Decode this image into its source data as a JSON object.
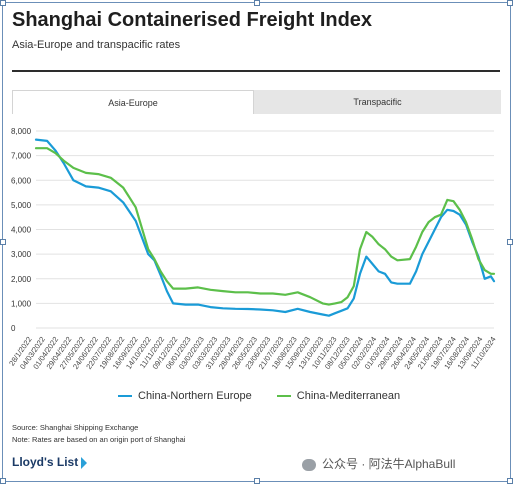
{
  "header": {
    "title": "Shanghai Containerised Freight Index",
    "subtitle": "Asia-Europe and transpacific rates"
  },
  "tabs": [
    {
      "label": "Asia-Europe",
      "active": true
    },
    {
      "label": "Transpacific",
      "active": false
    }
  ],
  "footer": {
    "source": "Source: Shanghai Shipping Exchange",
    "note": "Note: Rates are based on an origin port of Shanghai",
    "brand": "Lloyd's List",
    "watermark": "公众号 · 阿法牛AlphaBull"
  },
  "colors": {
    "northern_europe": "#1a9bd7",
    "mediterranean": "#5cbf4a",
    "grid": "#e2e2e2"
  },
  "chart_data": {
    "type": "line",
    "title": "Shanghai Containerised Freight Index",
    "subtitle": "Asia-Europe and transpacific rates",
    "ylim": [
      0,
      8000
    ],
    "yticks": [
      "0",
      "1,000",
      "2,000",
      "3,000",
      "4,000",
      "5,000",
      "6,000",
      "7,000",
      "8,000"
    ],
    "xticks": [
      "28/1/2022",
      "04/03/2022",
      "01/04/2022",
      "29/04/2022",
      "27/05/2022",
      "24/06/2022",
      "22/07/2022",
      "19/08/2022",
      "16/09/2022",
      "14/10/2022",
      "11/11/2022",
      "09/12/2022",
      "06/01/2023",
      "03/02/2023",
      "03/03/2023",
      "31/03/2023",
      "28/04/2023",
      "26/05/2023",
      "23/06/2023",
      "21/07/2023",
      "18/08/2023",
      "15/09/2023",
      "13/10/2023",
      "10/11/2023",
      "08/12/2023",
      "05/01/2024",
      "02/02/2024",
      "01/03/2024",
      "29/03/2024",
      "26/04/2024",
      "24/05/2024",
      "21/06/2024",
      "19/07/2024",
      "16/08/2024",
      "13/09/2024",
      "11/10/2024"
    ],
    "grid": true,
    "legend_position": "bottom",
    "series": [
      {
        "name": "China-Northern Europe",
        "color": "#1a9bd7",
        "points": [
          [
            "2022-01-07",
            7650
          ],
          [
            "2022-02-01",
            7600
          ],
          [
            "2022-02-20",
            7200
          ],
          [
            "2022-03-10",
            6700
          ],
          [
            "2022-04-01",
            6000
          ],
          [
            "2022-04-29",
            5750
          ],
          [
            "2022-05-27",
            5700
          ],
          [
            "2022-06-24",
            5550
          ],
          [
            "2022-07-22",
            5100
          ],
          [
            "2022-08-19",
            4350
          ],
          [
            "2022-09-16",
            3000
          ],
          [
            "2022-09-30",
            2750
          ],
          [
            "2022-10-14",
            2150
          ],
          [
            "2022-10-28",
            1500
          ],
          [
            "2022-11-11",
            1000
          ],
          [
            "2022-12-09",
            950
          ],
          [
            "2023-01-06",
            950
          ],
          [
            "2023-02-03",
            850
          ],
          [
            "2023-03-03",
            800
          ],
          [
            "2023-03-31",
            780
          ],
          [
            "2023-04-28",
            770
          ],
          [
            "2023-05-26",
            750
          ],
          [
            "2023-06-23",
            720
          ],
          [
            "2023-07-21",
            650
          ],
          [
            "2023-08-18",
            780
          ],
          [
            "2023-09-15",
            650
          ],
          [
            "2023-10-13",
            550
          ],
          [
            "2023-10-27",
            500
          ],
          [
            "2023-11-10",
            600
          ],
          [
            "2023-11-24",
            700
          ],
          [
            "2023-12-08",
            800
          ],
          [
            "2023-12-22",
            1200
          ],
          [
            "2024-01-05",
            2200
          ],
          [
            "2024-01-19",
            2900
          ],
          [
            "2024-02-02",
            2600
          ],
          [
            "2024-02-16",
            2300
          ],
          [
            "2024-03-01",
            2200
          ],
          [
            "2024-03-15",
            1850
          ],
          [
            "2024-03-29",
            1800
          ],
          [
            "2024-04-26",
            1800
          ],
          [
            "2024-05-10",
            2300
          ],
          [
            "2024-05-24",
            3000
          ],
          [
            "2024-06-07",
            3500
          ],
          [
            "2024-06-21",
            4000
          ],
          [
            "2024-07-05",
            4500
          ],
          [
            "2024-07-19",
            4800
          ],
          [
            "2024-08-02",
            4750
          ],
          [
            "2024-08-16",
            4600
          ],
          [
            "2024-08-30",
            4200
          ],
          [
            "2024-09-13",
            3500
          ],
          [
            "2024-09-27",
            2900
          ],
          [
            "2024-10-11",
            2000
          ],
          [
            "2024-10-25",
            2100
          ],
          [
            "2024-11-01",
            1900
          ]
        ]
      },
      {
        "name": "China-Mediterranean",
        "color": "#5cbf4a",
        "points": [
          [
            "2022-01-07",
            7300
          ],
          [
            "2022-02-01",
            7300
          ],
          [
            "2022-02-20",
            7100
          ],
          [
            "2022-03-10",
            6800
          ],
          [
            "2022-04-01",
            6500
          ],
          [
            "2022-04-29",
            6300
          ],
          [
            "2022-05-27",
            6250
          ],
          [
            "2022-06-24",
            6100
          ],
          [
            "2022-07-22",
            5700
          ],
          [
            "2022-08-19",
            4900
          ],
          [
            "2022-09-16",
            3200
          ],
          [
            "2022-09-30",
            2800
          ],
          [
            "2022-10-14",
            2300
          ],
          [
            "2022-10-28",
            1900
          ],
          [
            "2022-11-11",
            1600
          ],
          [
            "2022-12-09",
            1600
          ],
          [
            "2023-01-06",
            1650
          ],
          [
            "2023-02-03",
            1550
          ],
          [
            "2023-03-03",
            1500
          ],
          [
            "2023-03-31",
            1450
          ],
          [
            "2023-04-28",
            1450
          ],
          [
            "2023-05-26",
            1400
          ],
          [
            "2023-06-23",
            1400
          ],
          [
            "2023-07-21",
            1350
          ],
          [
            "2023-08-18",
            1450
          ],
          [
            "2023-09-15",
            1250
          ],
          [
            "2023-10-13",
            1000
          ],
          [
            "2023-10-27",
            950
          ],
          [
            "2023-11-10",
            1000
          ],
          [
            "2023-11-24",
            1050
          ],
          [
            "2023-12-08",
            1250
          ],
          [
            "2023-12-22",
            1700
          ],
          [
            "2024-01-05",
            3200
          ],
          [
            "2024-01-19",
            3900
          ],
          [
            "2024-02-02",
            3700
          ],
          [
            "2024-02-16",
            3400
          ],
          [
            "2024-03-01",
            3200
          ],
          [
            "2024-03-15",
            2900
          ],
          [
            "2024-03-29",
            2750
          ],
          [
            "2024-04-26",
            2800
          ],
          [
            "2024-05-10",
            3300
          ],
          [
            "2024-05-24",
            3900
          ],
          [
            "2024-06-07",
            4300
          ],
          [
            "2024-06-21",
            4500
          ],
          [
            "2024-07-05",
            4600
          ],
          [
            "2024-07-19",
            5200
          ],
          [
            "2024-08-02",
            5150
          ],
          [
            "2024-08-16",
            4800
          ],
          [
            "2024-08-30",
            4300
          ],
          [
            "2024-09-13",
            3600
          ],
          [
            "2024-09-27",
            2800
          ],
          [
            "2024-10-11",
            2350
          ],
          [
            "2024-10-25",
            2200
          ],
          [
            "2024-11-01",
            2200
          ]
        ]
      }
    ]
  }
}
